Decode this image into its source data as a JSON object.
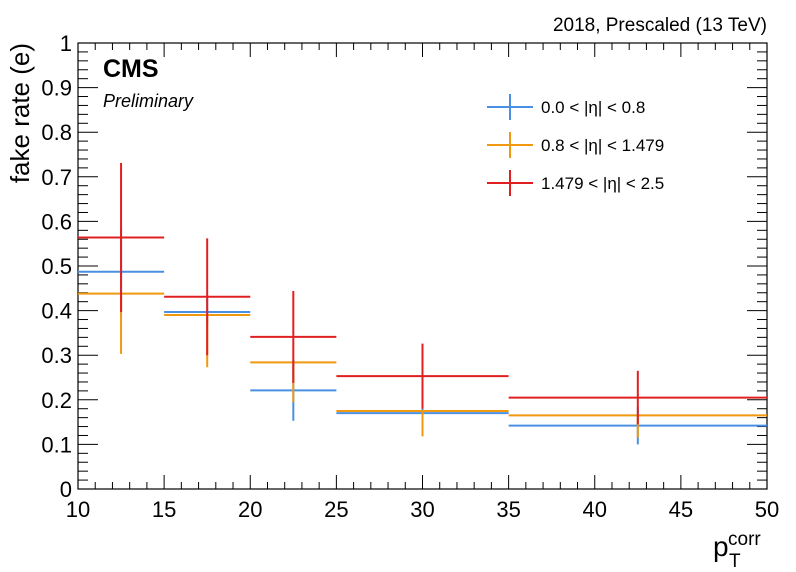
{
  "header": {
    "energy_label": "2018, Prescaled (13 TeV)",
    "experiment": "CMS",
    "status": "Preliminary"
  },
  "chart_data": {
    "type": "scatter",
    "title": "",
    "xlabel": "p",
    "xlabel_sub": "T",
    "xlabel_sup": "corr",
    "ylabel": "fake rate (e)",
    "xlim": [
      10,
      50
    ],
    "ylim": [
      0,
      1
    ],
    "xticks": [
      10,
      15,
      20,
      25,
      30,
      35,
      40,
      45,
      50
    ],
    "yticks": [
      0,
      0.1,
      0.2,
      0.3,
      0.4,
      0.5,
      0.6,
      0.7,
      0.8,
      0.9,
      1
    ],
    "ytick_labels": [
      "0",
      "0.1",
      "0.2",
      "0.3",
      "0.4",
      "0.5",
      "0.6",
      "0.7",
      "0.8",
      "0.9",
      "1"
    ],
    "bins": [
      [
        10,
        15
      ],
      [
        15,
        20
      ],
      [
        20,
        25
      ],
      [
        25,
        35
      ],
      [
        35,
        50
      ]
    ],
    "legend_position": "top-right",
    "series": [
      {
        "name": "0.0 < |η| < 0.8",
        "color": "#4a90e2",
        "values": [
          0.487,
          0.397,
          0.221,
          0.17,
          0.142
        ],
        "err_low": [
          0.1,
          0.03,
          0.068,
          0.025,
          0.042
        ],
        "err_high": [
          0.1,
          0.03,
          0.068,
          0.025,
          0.042
        ]
      },
      {
        "name": "0.8 < |η| < 1.479",
        "color": "#f0980f",
        "values": [
          0.438,
          0.39,
          0.284,
          0.175,
          0.165
        ],
        "err_low": [
          0.135,
          0.117,
          0.089,
          0.057,
          0.05
        ],
        "err_high": [
          0.0,
          0.0,
          0.0,
          0.0,
          0.0
        ]
      },
      {
        "name": "1.479 < |η| < 2.5",
        "color": "#e02020",
        "values": [
          0.564,
          0.431,
          0.341,
          0.253,
          0.205
        ],
        "err_low": [
          0.167,
          0.131,
          0.103,
          0.073,
          0.06
        ],
        "err_high": [
          0.167,
          0.131,
          0.103,
          0.073,
          0.06
        ]
      }
    ]
  }
}
